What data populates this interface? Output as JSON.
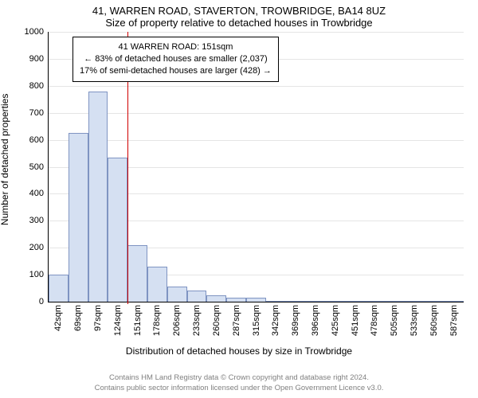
{
  "title_line1": "41, WARREN ROAD, STAVERTON, TROWBRIDGE, BA14 8UZ",
  "title_line2": "Size of property relative to detached houses in Trowbridge",
  "chart": {
    "type": "histogram",
    "ylabel": "Number of detached properties",
    "xlabel": "Distribution of detached houses by size in Trowbridge",
    "ylim": [
      0,
      1000
    ],
    "ytick_step": 100,
    "yticks": [
      0,
      100,
      200,
      300,
      400,
      500,
      600,
      700,
      800,
      900,
      1000
    ],
    "xtick_labels": [
      "42sqm",
      "69sqm",
      "97sqm",
      "124sqm",
      "151sqm",
      "178sqm",
      "206sqm",
      "233sqm",
      "260sqm",
      "287sqm",
      "315sqm",
      "342sqm",
      "369sqm",
      "396sqm",
      "425sqm",
      "451sqm",
      "478sqm",
      "505sqm",
      "533sqm",
      "560sqm",
      "587sqm"
    ],
    "values": [
      100,
      625,
      780,
      535,
      210,
      130,
      55,
      40,
      25,
      15,
      15,
      0,
      0,
      0,
      0,
      0,
      0,
      0,
      0,
      0,
      0
    ],
    "bar_fill": "#d5e0f2",
    "bar_stroke": "#7f94c2",
    "grid_color": "#e5e5e5",
    "background_color": "#ffffff",
    "bar_width_ratio": 1.0,
    "title_fontsize": 13,
    "label_fontsize": 12,
    "tick_fontsize": 11,
    "marker": {
      "position_index": 4,
      "color": "#d00000"
    },
    "infobox": {
      "line1": "41 WARREN ROAD: 151sqm",
      "line2": "← 83% of detached houses are smaller (2,037)",
      "line3": "17% of semi-detached houses are larger (428) →",
      "border_color": "#000000",
      "bg_color": "#ffffff",
      "fontsize": 11
    }
  },
  "footer": {
    "line1": "Contains HM Land Registry data © Crown copyright and database right 2024.",
    "line2": "Contains public sector information licensed under the Open Government Licence v3.0.",
    "color": "#808080",
    "fontsize": 9.5
  }
}
